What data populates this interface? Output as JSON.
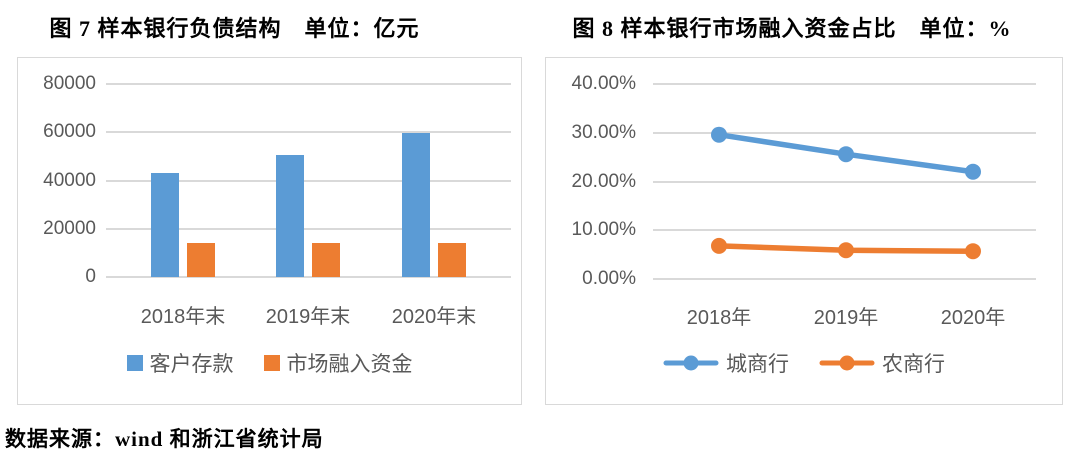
{
  "source_note": "数据来源：wind 和浙江省统计局",
  "colors": {
    "series_blue": "#5B9BD5",
    "series_orange": "#ED7D31",
    "gridline": "#D9D9D9",
    "axis_text": "#595959",
    "panel_border": "#D9D9D9"
  },
  "chart_data": [
    {
      "type": "bar",
      "title": "图 7 样本银行负债结构　单位：亿元",
      "categories": [
        "2018年末",
        "2019年末",
        "2020年末"
      ],
      "series": [
        {
          "name": "客户存款",
          "color": "#5B9BD5",
          "values": [
            43000,
            50500,
            59500
          ]
        },
        {
          "name": "市场融入资金",
          "color": "#ED7D31",
          "values": [
            14200,
            13900,
            14200
          ]
        }
      ],
      "ylim": [
        0,
        80000
      ],
      "yticks": [
        "80000",
        "60000",
        "40000",
        "20000",
        "0"
      ],
      "grid": true,
      "legend_position": "bottom"
    },
    {
      "type": "line",
      "title": "图 8 样本银行市场融入资金占比　单位：%",
      "categories": [
        "2018年",
        "2019年",
        "2020年"
      ],
      "series": [
        {
          "name": "城商行",
          "color": "#5B9BD5",
          "values": [
            29.6,
            25.6,
            22.0
          ]
        },
        {
          "name": "农商行",
          "color": "#ED7D31",
          "values": [
            6.8,
            5.9,
            5.7
          ]
        }
      ],
      "ylim": [
        0,
        40
      ],
      "yticks": [
        "40.00%",
        "30.00%",
        "20.00%",
        "10.00%",
        "0.00%"
      ],
      "grid": true,
      "legend_position": "bottom"
    }
  ]
}
